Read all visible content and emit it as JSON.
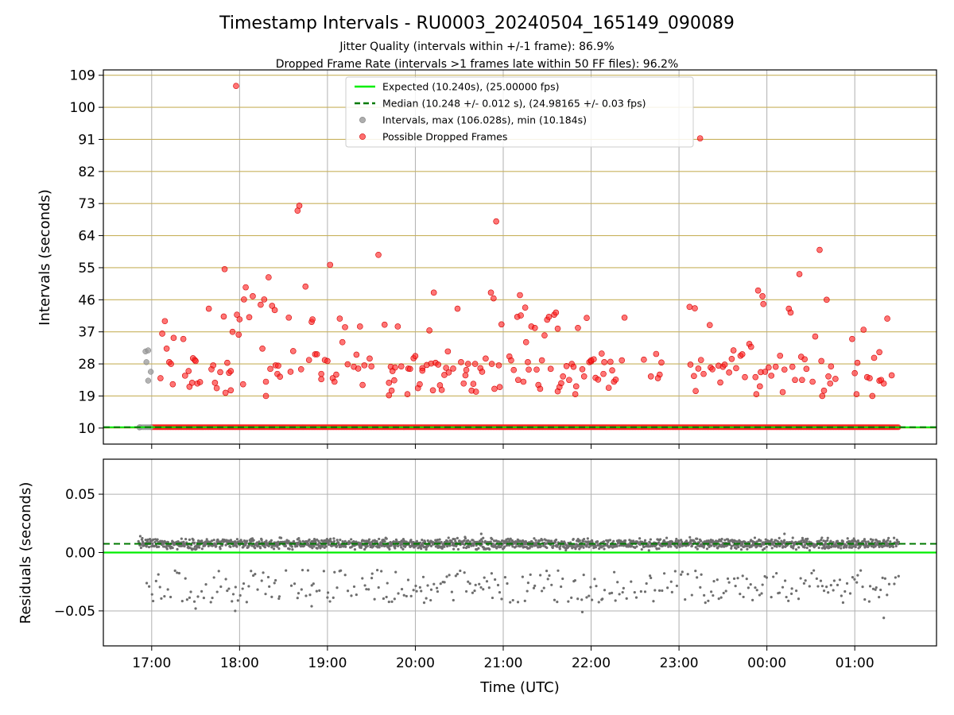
{
  "chart_data": {
    "type": "scatter",
    "title": "Timestamp Intervals - RU0003_20240504_165149_090089",
    "subtitle_lines": [
      "Jitter Quality (intervals within +/-1 frame): 86.9%",
      "Dropped Frame Rate (intervals >1 frames late within 50 FF files): 96.2%"
    ],
    "xlabel": "Time (UTC)",
    "x_ticks": [
      "17:00",
      "18:00",
      "19:00",
      "20:00",
      "21:00",
      "22:00",
      "23:00",
      "00:00",
      "01:00"
    ],
    "x_tick_hours": [
      17,
      18,
      19,
      20,
      21,
      22,
      23,
      24,
      25
    ],
    "xlim_hours": [
      16.45,
      25.93
    ],
    "colors": {
      "expected": "#00ee00",
      "median": "#007a00",
      "intervals": "#9a9a9a",
      "dropped": "#ff2020",
      "residuals": "#6e6e6e",
      "hline": "#c8b25e",
      "grid": "#b0b0b0"
    },
    "top_panel": {
      "ylabel": "Intervals (seconds)",
      "ylim": [
        5.5,
        110.5
      ],
      "y_ticks": [
        10,
        19,
        28,
        37,
        46,
        55,
        64,
        73,
        82,
        91,
        100,
        109
      ],
      "expected_interval": 10.24,
      "median_interval": 10.248,
      "legend": [
        {
          "key": "expected",
          "label": "Expected (10.240s), (25.00000 fps)",
          "marker": "line"
        },
        {
          "key": "median",
          "label": "Median (10.248 +/- 0.012 s), (24.98165 +/- 0.03 fps)",
          "marker": "dashed"
        },
        {
          "key": "intervals",
          "label": "Intervals, max (106.028s), min (10.184s)",
          "marker": "dot"
        },
        {
          "key": "dropped",
          "label": "Possible Dropped Frames",
          "marker": "dot"
        }
      ],
      "baseline_band": {
        "start_hour": 16.87,
        "end_hour": 25.5,
        "value": 10.24
      },
      "gray_points": [
        [
          16.86,
          10.2
        ],
        [
          16.93,
          31.5
        ],
        [
          16.96,
          31.8
        ],
        [
          16.94,
          28.5
        ],
        [
          16.96,
          23.3
        ],
        [
          16.99,
          25.8
        ]
      ],
      "red_points": [
        [
          17.1,
          24.0
        ],
        [
          17.12,
          36.5
        ],
        [
          17.15,
          40.0
        ],
        [
          17.17,
          32.3
        ],
        [
          17.2,
          28.5
        ],
        [
          17.25,
          35.3
        ],
        [
          17.22,
          28.0
        ],
        [
          17.24,
          22.3
        ],
        [
          17.36,
          35.0
        ],
        [
          17.38,
          24.7
        ],
        [
          17.42,
          26.0
        ],
        [
          17.43,
          21.6
        ],
        [
          17.46,
          22.7
        ],
        [
          17.47,
          29.6
        ],
        [
          17.49,
          29.1
        ],
        [
          17.5,
          28.8
        ],
        [
          17.52,
          22.5
        ],
        [
          17.55,
          22.9
        ],
        [
          17.65,
          43.5
        ],
        [
          17.68,
          26.5
        ],
        [
          17.7,
          27.6
        ],
        [
          17.72,
          22.7
        ],
        [
          17.74,
          21.2
        ],
        [
          17.78,
          25.7
        ],
        [
          17.82,
          41.3
        ],
        [
          17.83,
          54.6
        ],
        [
          17.84,
          19.9
        ],
        [
          17.86,
          28.3
        ],
        [
          17.88,
          25.5
        ],
        [
          17.9,
          26.0
        ],
        [
          17.9,
          20.6
        ],
        [
          17.92,
          37.0
        ],
        [
          17.96,
          106.0
        ],
        [
          17.97,
          41.8
        ],
        [
          17.99,
          36.2
        ],
        [
          18.0,
          40.5
        ],
        [
          18.04,
          22.3
        ],
        [
          18.05,
          46.1
        ],
        [
          18.07,
          49.5
        ],
        [
          18.11,
          41.1
        ],
        [
          18.15,
          47.0
        ],
        [
          18.24,
          44.6
        ],
        [
          18.26,
          32.3
        ],
        [
          18.28,
          46.1
        ],
        [
          18.3,
          19.0
        ],
        [
          18.3,
          23.0
        ],
        [
          18.33,
          52.3
        ],
        [
          18.35,
          26.6
        ],
        [
          18.37,
          44.3
        ],
        [
          18.4,
          43.1
        ],
        [
          18.41,
          27.6
        ],
        [
          18.43,
          25.2
        ],
        [
          18.44,
          27.5
        ],
        [
          18.46,
          24.4
        ],
        [
          18.56,
          41.0
        ],
        [
          18.58,
          25.8
        ],
        [
          18.61,
          31.6
        ],
        [
          18.66,
          71.0
        ],
        [
          18.68,
          72.4
        ],
        [
          18.7,
          26.5
        ],
        [
          18.75,
          49.7
        ],
        [
          18.79,
          29.1
        ],
        [
          18.82,
          39.8
        ],
        [
          18.83,
          40.5
        ],
        [
          18.86,
          30.7
        ],
        [
          18.88,
          30.7
        ],
        [
          18.93,
          25.2
        ],
        [
          18.93,
          23.7
        ],
        [
          18.97,
          29.1
        ],
        [
          19.03,
          55.8
        ],
        [
          19.0,
          28.8
        ],
        [
          19.06,
          24.0
        ],
        [
          19.08,
          23.0
        ],
        [
          19.1,
          25.0
        ],
        [
          19.14,
          40.7
        ],
        [
          19.17,
          34.1
        ],
        [
          19.2,
          38.3
        ],
        [
          19.23,
          27.9
        ],
        [
          19.3,
          27.2
        ],
        [
          19.33,
          30.6
        ],
        [
          19.35,
          26.7
        ],
        [
          19.37,
          38.5
        ],
        [
          19.4,
          22.1
        ],
        [
          19.42,
          27.6
        ],
        [
          19.48,
          29.5
        ],
        [
          19.5,
          27.3
        ],
        [
          19.58,
          58.6
        ],
        [
          19.65,
          39.0
        ],
        [
          19.7,
          22.7
        ],
        [
          19.7,
          19.2
        ],
        [
          19.73,
          20.5
        ],
        [
          19.72,
          27.2
        ],
        [
          19.74,
          26.0
        ],
        [
          19.76,
          23.4
        ],
        [
          19.77,
          27.0
        ],
        [
          19.8,
          38.5
        ],
        [
          19.84,
          27.3
        ],
        [
          19.92,
          26.7
        ],
        [
          19.91,
          19.5
        ],
        [
          19.94,
          26.6
        ],
        [
          19.98,
          29.6
        ],
        [
          20.0,
          30.2
        ],
        [
          20.03,
          21.2
        ],
        [
          20.05,
          22.3
        ],
        [
          20.08,
          26.8
        ],
        [
          20.08,
          26.1
        ],
        [
          20.13,
          27.7
        ],
        [
          20.16,
          37.4
        ],
        [
          20.18,
          28.1
        ],
        [
          20.21,
          48.0
        ],
        [
          20.2,
          20.6
        ],
        [
          20.23,
          28.3
        ],
        [
          20.26,
          27.8
        ],
        [
          20.28,
          22.0
        ],
        [
          20.3,
          20.7
        ],
        [
          20.33,
          24.9
        ],
        [
          20.35,
          26.9
        ],
        [
          20.37,
          31.5
        ],
        [
          20.38,
          25.6
        ],
        [
          20.43,
          26.7
        ],
        [
          20.48,
          43.5
        ],
        [
          20.52,
          28.5
        ],
        [
          20.55,
          22.5
        ],
        [
          20.57,
          24.8
        ],
        [
          20.58,
          26.3
        ],
        [
          20.6,
          28.0
        ],
        [
          20.64,
          20.5
        ],
        [
          20.66,
          22.4
        ],
        [
          20.68,
          28.0
        ],
        [
          20.69,
          20.2
        ],
        [
          20.74,
          26.8
        ],
        [
          20.76,
          25.8
        ],
        [
          20.8,
          29.5
        ],
        [
          20.86,
          48.0
        ],
        [
          20.87,
          28.0
        ],
        [
          20.89,
          46.4
        ],
        [
          20.9,
          21.0
        ],
        [
          20.92,
          68.0
        ],
        [
          20.95,
          27.6
        ],
        [
          20.96,
          21.5
        ],
        [
          20.98,
          39.1
        ],
        [
          21.07,
          30.1
        ],
        [
          21.09,
          29.0
        ],
        [
          21.12,
          26.3
        ],
        [
          21.16,
          41.2
        ],
        [
          21.17,
          23.5
        ],
        [
          21.19,
          47.3
        ],
        [
          21.2,
          41.6
        ],
        [
          21.23,
          23.0
        ],
        [
          21.25,
          43.8
        ],
        [
          21.26,
          34.1
        ],
        [
          21.28,
          28.5
        ],
        [
          21.29,
          26.4
        ],
        [
          21.32,
          38.5
        ],
        [
          21.36,
          38.1
        ],
        [
          21.38,
          26.4
        ],
        [
          21.4,
          22.1
        ],
        [
          21.42,
          21.0
        ],
        [
          21.44,
          29.0
        ],
        [
          21.47,
          36.0
        ],
        [
          21.5,
          40.4
        ],
        [
          21.52,
          41.2
        ],
        [
          21.54,
          26.6
        ],
        [
          21.58,
          41.8
        ],
        [
          21.6,
          42.4
        ],
        [
          21.62,
          37.9
        ],
        [
          21.62,
          20.3
        ],
        [
          21.64,
          21.5
        ],
        [
          21.66,
          22.6
        ],
        [
          21.68,
          24.5
        ],
        [
          21.72,
          27.4
        ],
        [
          21.75,
          23.5
        ],
        [
          21.78,
          28.0
        ],
        [
          21.8,
          27.2
        ],
        [
          21.82,
          19.5
        ],
        [
          21.83,
          21.7
        ],
        [
          21.85,
          38.1
        ],
        [
          21.9,
          26.5
        ],
        [
          21.92,
          24.5
        ],
        [
          21.95,
          40.9
        ],
        [
          21.98,
          28.5
        ],
        [
          22.0,
          28.7
        ],
        [
          22.0,
          29.0
        ],
        [
          22.03,
          29.3
        ],
        [
          22.05,
          24.1
        ],
        [
          22.08,
          23.6
        ],
        [
          22.12,
          30.9
        ],
        [
          22.14,
          25.2
        ],
        [
          22.15,
          28.5
        ],
        [
          22.2,
          21.3
        ],
        [
          22.22,
          28.6
        ],
        [
          22.24,
          26.2
        ],
        [
          22.26,
          23.0
        ],
        [
          22.28,
          23.6
        ],
        [
          22.35,
          29.0
        ],
        [
          22.38,
          41.0
        ],
        [
          22.6,
          29.2
        ],
        [
          22.68,
          24.5
        ],
        [
          22.74,
          30.8
        ],
        [
          22.78,
          25.0
        ],
        [
          22.76,
          24.0
        ],
        [
          22.8,
          28.4
        ],
        [
          23.12,
          44.0
        ],
        [
          23.13,
          27.8
        ],
        [
          23.18,
          43.6
        ],
        [
          23.17,
          24.6
        ],
        [
          23.19,
          20.4
        ],
        [
          23.22,
          26.7
        ],
        [
          23.24,
          91.3
        ],
        [
          23.25,
          29.1
        ],
        [
          23.28,
          25.2
        ],
        [
          23.35,
          38.9
        ],
        [
          23.36,
          27.0
        ],
        [
          23.38,
          26.5
        ],
        [
          23.45,
          27.5
        ],
        [
          23.47,
          22.8
        ],
        [
          23.5,
          27.2
        ],
        [
          23.52,
          27.8
        ],
        [
          23.57,
          25.6
        ],
        [
          23.6,
          29.4
        ],
        [
          23.62,
          31.8
        ],
        [
          23.65,
          26.8
        ],
        [
          23.7,
          30.3
        ],
        [
          23.72,
          30.7
        ],
        [
          23.75,
          24.3
        ],
        [
          23.8,
          33.6
        ],
        [
          23.82,
          32.8
        ],
        [
          23.87,
          24.3
        ],
        [
          23.88,
          19.5
        ],
        [
          23.9,
          48.6
        ],
        [
          23.92,
          21.7
        ],
        [
          23.93,
          25.7
        ],
        [
          23.95,
          47.0
        ],
        [
          23.96,
          44.8
        ],
        [
          23.98,
          25.8
        ],
        [
          24.02,
          27.0
        ],
        [
          24.05,
          24.7
        ],
        [
          24.1,
          27.2
        ],
        [
          24.15,
          30.3
        ],
        [
          24.18,
          20.1
        ],
        [
          24.2,
          26.4
        ],
        [
          24.25,
          43.5
        ],
        [
          24.27,
          42.4
        ],
        [
          24.29,
          27.2
        ],
        [
          24.32,
          23.5
        ],
        [
          24.37,
          53.2
        ],
        [
          24.39,
          30.0
        ],
        [
          24.4,
          23.5
        ],
        [
          24.43,
          29.3
        ],
        [
          24.45,
          26.6
        ],
        [
          24.52,
          23.0
        ],
        [
          24.55,
          35.7
        ],
        [
          24.6,
          60.0
        ],
        [
          24.62,
          28.8
        ],
        [
          24.63,
          19.0
        ],
        [
          24.65,
          20.5
        ],
        [
          24.68,
          46.0
        ],
        [
          24.7,
          24.5
        ],
        [
          24.72,
          22.5
        ],
        [
          24.73,
          27.3
        ],
        [
          24.78,
          23.8
        ],
        [
          24.97,
          35.0
        ],
        [
          25.0,
          25.4
        ],
        [
          25.03,
          28.3
        ],
        [
          25.02,
          19.5
        ],
        [
          25.1,
          37.6
        ],
        [
          25.14,
          24.3
        ],
        [
          25.17,
          24.0
        ],
        [
          25.2,
          19.0
        ],
        [
          25.22,
          29.7
        ],
        [
          25.28,
          31.3
        ],
        [
          25.28,
          23.3
        ],
        [
          25.3,
          23.5
        ],
        [
          25.33,
          22.5
        ],
        [
          25.37,
          40.7
        ],
        [
          25.42,
          24.8
        ]
      ]
    },
    "bottom_panel": {
      "ylabel": "Residuals (seconds)",
      "ylim": [
        -0.08,
        0.08
      ],
      "y_ticks": [
        0.05,
        0.0,
        -0.05
      ],
      "y_tick_labels": [
        "0.05",
        "0.00",
        "−0.05"
      ],
      "expected_residual": 0.0,
      "median_residual": 0.0075,
      "main_band": {
        "start_hour": 16.85,
        "end_hour": 25.5,
        "center": 0.0075,
        "spread": 0.0038
      },
      "lower_cloud": {
        "start_hour": 16.95,
        "end_hour": 25.5,
        "min": -0.048,
        "max": -0.015
      },
      "extreme_points": [
        [
          17.5,
          -0.048
        ],
        [
          17.95,
          -0.05
        ],
        [
          18.82,
          -0.046
        ],
        [
          21.9,
          -0.051
        ],
        [
          25.33,
          -0.056
        ],
        [
          20.1,
          -0.043
        ],
        [
          23.3,
          -0.043
        ],
        [
          24.2,
          0.016
        ],
        [
          20.75,
          0.016
        ],
        [
          16.87,
          0.014
        ]
      ]
    }
  }
}
